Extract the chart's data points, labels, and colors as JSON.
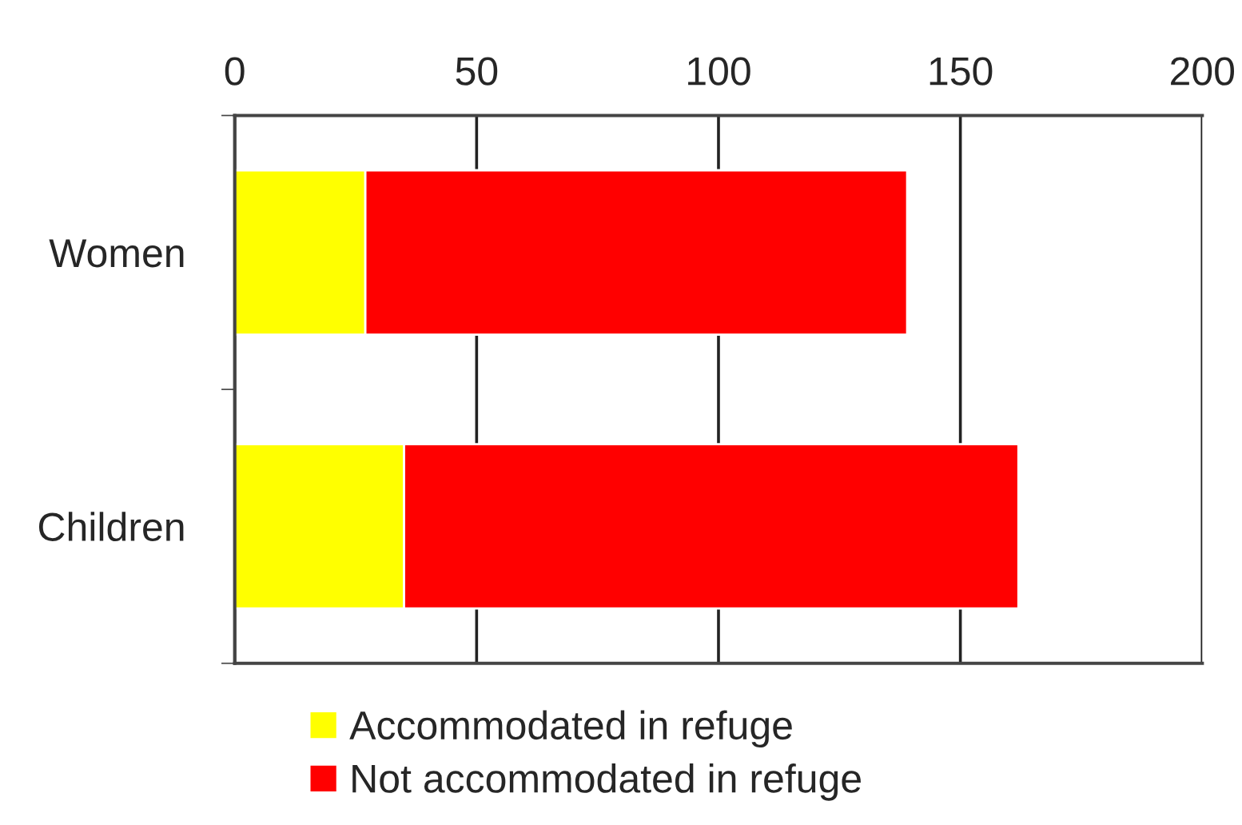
{
  "chart_data": {
    "type": "bar",
    "orientation": "horizontal",
    "stacked": true,
    "categories": [
      "Women",
      "Children"
    ],
    "series": [
      {
        "name": "Accommodated in refuge",
        "color": "#ffff00",
        "values": [
          27,
          35
        ]
      },
      {
        "name": "Not accommodated in refuge",
        "color": "#ff0000",
        "values": [
          112,
          127
        ]
      }
    ],
    "xlim": [
      0,
      200
    ],
    "xticks": [
      0,
      50,
      100,
      150,
      200
    ],
    "grid": "x",
    "legend": "bottom"
  }
}
